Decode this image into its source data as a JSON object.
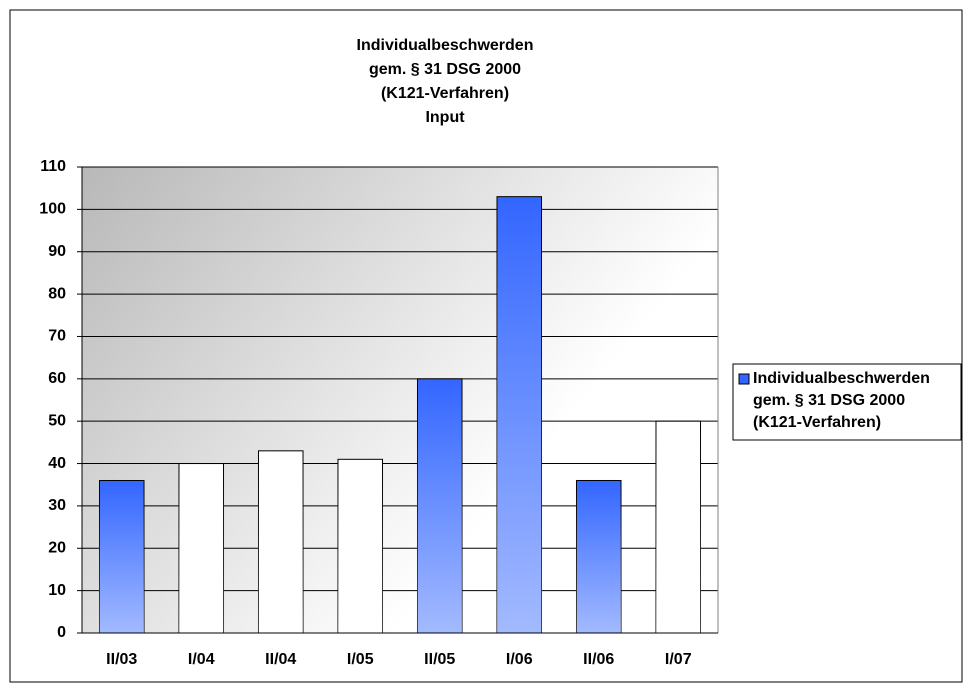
{
  "chart_data": {
    "type": "bar",
    "title": [
      "Individualbeschwerden",
      "gem. § 31 DSG 2000",
      "(K121-Verfahren)",
      "Input"
    ],
    "categories": [
      "II/03",
      "I/04",
      "II/04",
      "I/05",
      "II/05",
      "I/06",
      "II/06",
      "I/07"
    ],
    "series": [
      {
        "name": [
          "Individualbeschwerden",
          "gem. § 31 DSG 2000",
          "(K121-Verfahren)"
        ],
        "color": "#3366ff",
        "values": [
          36,
          40,
          43,
          41,
          60,
          103,
          36,
          50
        ],
        "colors": [
          "#3366ff",
          "#ffffff",
          "#ffffff",
          "#ffffff",
          "#3366ff",
          "#3366ff",
          "#3366ff",
          "#ffffff"
        ]
      }
    ],
    "ylim": [
      0,
      110
    ],
    "yticks": [
      0,
      10,
      20,
      30,
      40,
      50,
      60,
      70,
      80,
      90,
      100,
      110
    ],
    "grid": true,
    "legend": "right"
  }
}
